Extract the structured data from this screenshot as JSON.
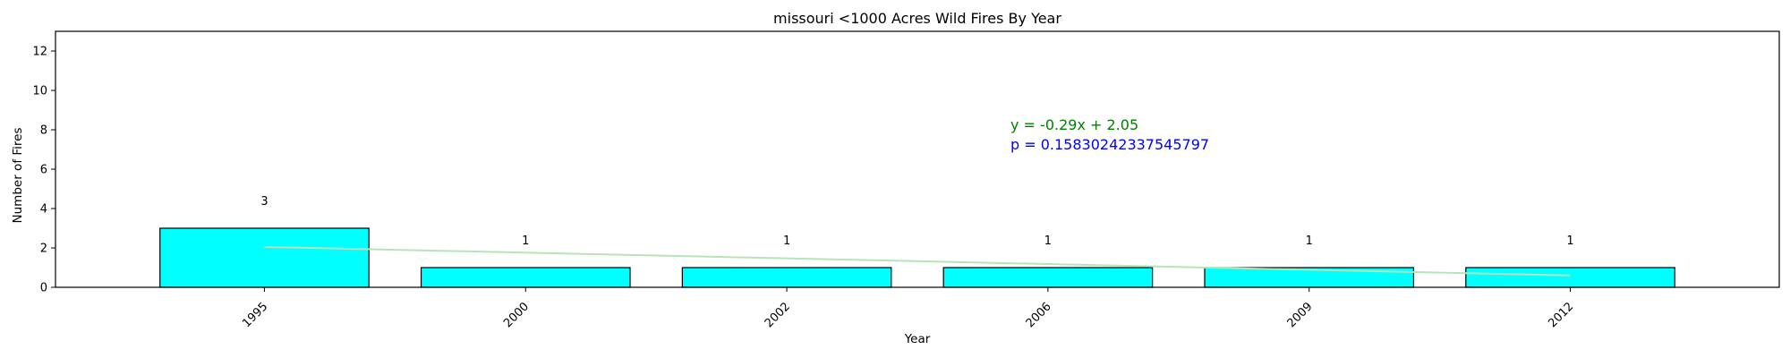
{
  "chart_data": {
    "type": "bar",
    "title": "missouri <1000 Acres Wild Fires By Year",
    "xlabel": "Year",
    "ylabel": "Number of Fires",
    "categories": [
      "1995",
      "2000",
      "2002",
      "2006",
      "2009",
      "2012"
    ],
    "values": [
      3,
      1,
      1,
      1,
      1,
      1
    ],
    "data_labels": [
      "3",
      "1",
      "1",
      "1",
      "1",
      "1"
    ],
    "ylim": [
      0,
      13
    ],
    "yticks": [
      0,
      2,
      4,
      6,
      8,
      10,
      12
    ],
    "grid": false,
    "bar_color": "#00ffff",
    "bar_edge_color": "#000000",
    "trendline": {
      "slope": -0.29,
      "intercept": 2.05,
      "color": "#b7e4b7",
      "equation_text": "y = -0.29x + 2.05",
      "equation_color": "#008000",
      "p_text": "p = 0.15830242337545797",
      "p_color": "#0000ff"
    }
  }
}
